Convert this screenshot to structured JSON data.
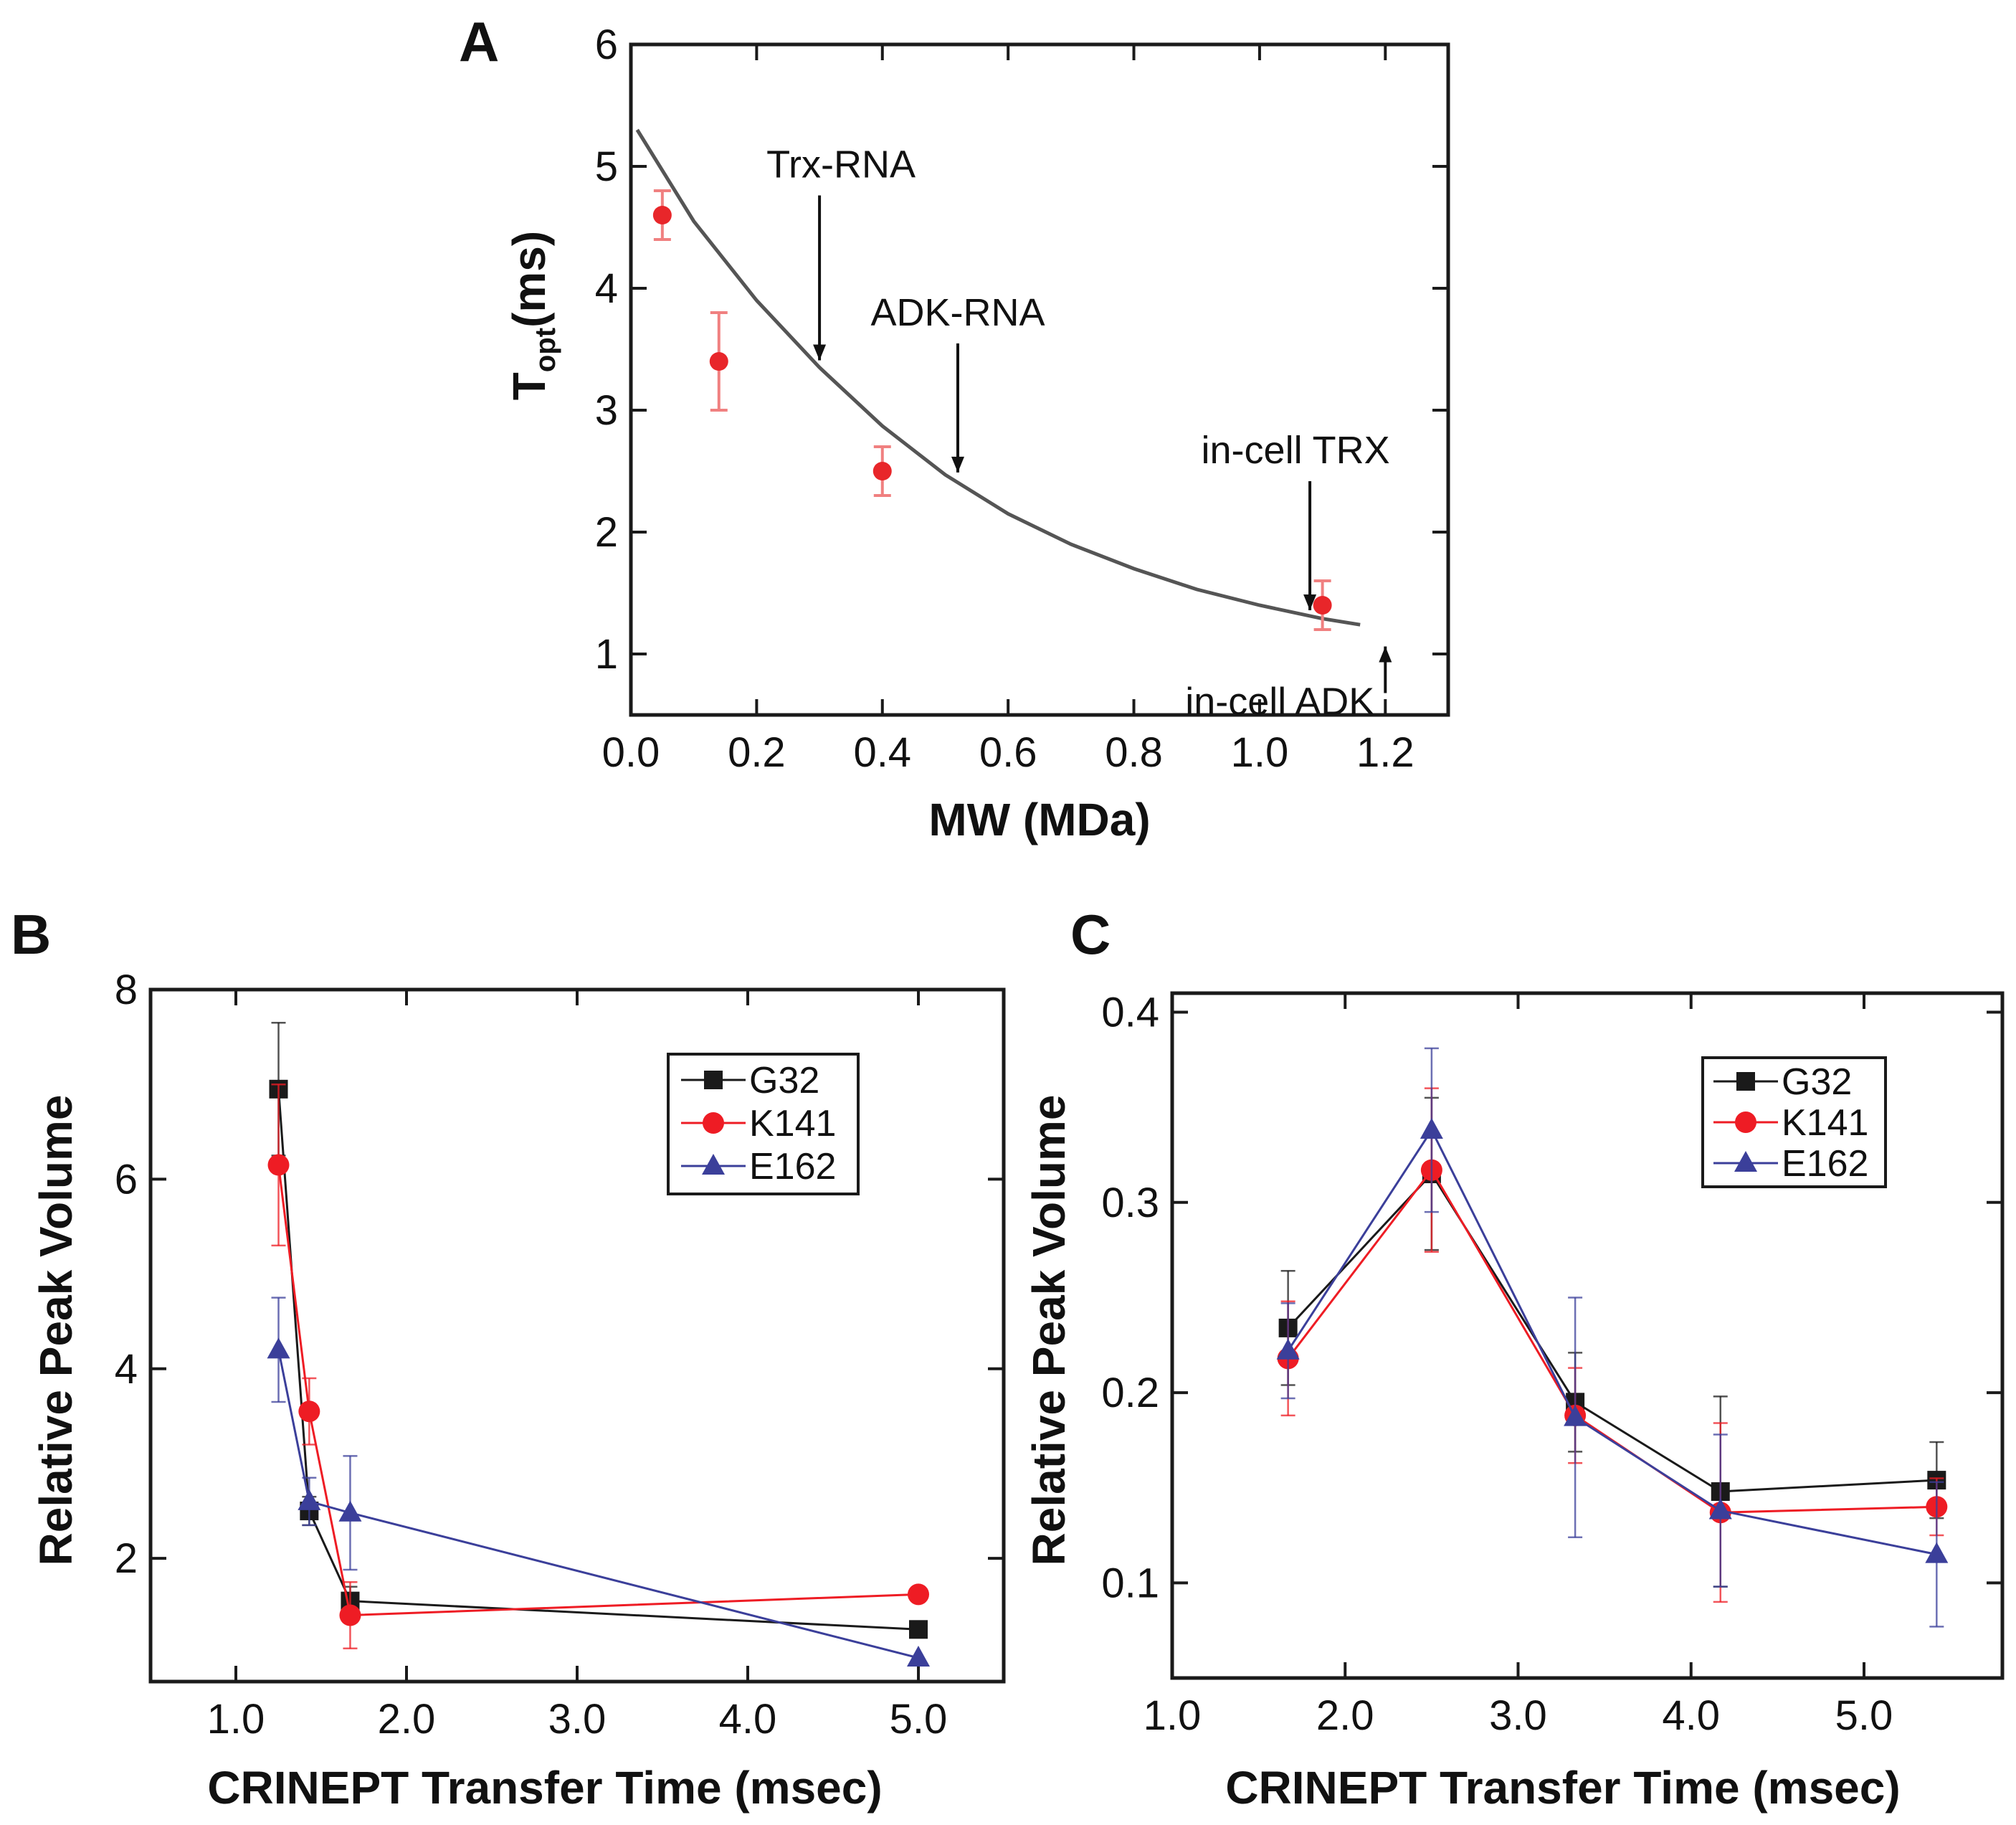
{
  "chart_data": [
    {
      "panel": "A",
      "type": "scatter",
      "ylabel_main": "T",
      "ylabel_sub": "opt",
      "ylabel_rest": "(ms)",
      "xlabel": "MW (MDa)",
      "xlim": [
        0.0,
        1.3
      ],
      "ylim": [
        0.5,
        6.0
      ],
      "xticks": [
        0.0,
        0.2,
        0.4,
        0.6,
        0.8,
        1.0,
        1.2
      ],
      "xtick_labels": [
        "0.0",
        "0.2",
        "0.4",
        "0.6",
        "0.8",
        "1.0",
        "1.2"
      ],
      "yticks": [
        1,
        2,
        3,
        4,
        5,
        6
      ],
      "ytick_labels": [
        "1",
        "2",
        "3",
        "4",
        "5",
        "6"
      ],
      "points": [
        {
          "x": 0.05,
          "y": 4.6,
          "err": 0.2
        },
        {
          "x": 0.14,
          "y": 3.4,
          "err": 0.4
        },
        {
          "x": 0.4,
          "y": 2.5,
          "err": 0.2
        },
        {
          "x": 1.1,
          "y": 1.4,
          "err": 0.2
        }
      ],
      "point_color": "#e8262a",
      "fit_curve": {
        "x": [
          0.01,
          0.1,
          0.2,
          0.3,
          0.4,
          0.5,
          0.6,
          0.7,
          0.8,
          0.9,
          1.0,
          1.1,
          1.16
        ],
        "y": [
          5.3,
          4.55,
          3.9,
          3.35,
          2.87,
          2.47,
          2.15,
          1.9,
          1.7,
          1.53,
          1.4,
          1.29,
          1.24
        ]
      },
      "annotations": [
        {
          "label": "Trx-RNA",
          "x": 0.3,
          "y": 3.35,
          "direction": "down"
        },
        {
          "label": "ADK-RNA",
          "x": 0.52,
          "y": 2.43,
          "direction": "down"
        },
        {
          "label": "in-cell TRX",
          "x": 1.08,
          "y": 1.3,
          "direction": "down"
        },
        {
          "label": "in-cell ADK",
          "x": 1.2,
          "y": 1.15,
          "direction": "up"
        }
      ]
    },
    {
      "panel": "B",
      "type": "line",
      "xlabel": "CRINEPT Transfer Time (msec)",
      "ylabel": "Relative Peak Volume",
      "xlim": [
        0.5,
        5.5
      ],
      "ylim": [
        0.7,
        8.0
      ],
      "xticks": [
        1.0,
        2.0,
        3.0,
        4.0,
        5.0
      ],
      "xtick_labels": [
        "1.0",
        "2.0",
        "3.0",
        "4.0",
        "5.0"
      ],
      "yticks": [
        2,
        4,
        6,
        8
      ],
      "ytick_labels": [
        "2",
        "4",
        "6",
        "8"
      ],
      "series": [
        {
          "name": "G32",
          "color": "#1a1a1a",
          "marker": "square",
          "x": [
            1.25,
            1.43,
            1.67,
            5.0
          ],
          "y": [
            6.95,
            2.5,
            1.55,
            1.25
          ],
          "err": [
            0.7,
            0.15,
            0.15,
            0.0
          ]
        },
        {
          "name": "K141",
          "color": "#ee1c24",
          "marker": "circle",
          "x": [
            1.25,
            1.43,
            1.67,
            5.0
          ],
          "y": [
            6.15,
            3.55,
            1.4,
            1.62
          ],
          "err": [
            0.85,
            0.35,
            0.35,
            0.0
          ]
        },
        {
          "name": "E162",
          "color": "#3b3f9a",
          "marker": "triangle",
          "x": [
            1.25,
            1.43,
            1.67,
            5.0
          ],
          "y": [
            4.2,
            2.6,
            2.48,
            0.95
          ],
          "err": [
            0.55,
            0.25,
            0.6,
            0.0
          ]
        }
      ]
    },
    {
      "panel": "C",
      "type": "line",
      "xlabel": "CRINEPT Transfer Time (msec)",
      "ylabel": "Relative Peak Volume",
      "xlim": [
        1.0,
        5.8
      ],
      "ylim": [
        0.05,
        0.41
      ],
      "xticks": [
        1.0,
        2.0,
        3.0,
        4.0,
        5.0
      ],
      "xtick_labels": [
        "1.0",
        "2.0",
        "3.0",
        "4.0",
        "5.0"
      ],
      "yticks": [
        0.1,
        0.2,
        0.3,
        0.4
      ],
      "ytick_labels": [
        "0.1",
        "0.2",
        "0.3",
        "0.4"
      ],
      "series": [
        {
          "name": "G32",
          "color": "#1a1a1a",
          "marker": "square",
          "x": [
            1.67,
            2.5,
            3.33,
            4.17,
            5.42
          ],
          "y": [
            0.234,
            0.315,
            0.195,
            0.148,
            0.154
          ],
          "err": [
            0.03,
            0.04,
            0.026,
            0.05,
            0.02
          ]
        },
        {
          "name": "K141",
          "color": "#ee1c24",
          "marker": "circle",
          "x": [
            1.67,
            2.5,
            3.33,
            4.17,
            5.42
          ],
          "y": [
            0.218,
            0.317,
            0.188,
            0.137,
            0.14
          ],
          "err": [
            0.03,
            0.043,
            0.025,
            0.047,
            0.015
          ]
        },
        {
          "name": "E162",
          "color": "#3b3f9a",
          "marker": "triangle",
          "x": [
            1.67,
            2.5,
            3.33,
            4.17,
            5.42
          ],
          "y": [
            0.222,
            0.338,
            0.187,
            0.138,
            0.115
          ],
          "err": [
            0.025,
            0.043,
            0.063,
            0.04,
            0.038
          ]
        }
      ]
    }
  ]
}
